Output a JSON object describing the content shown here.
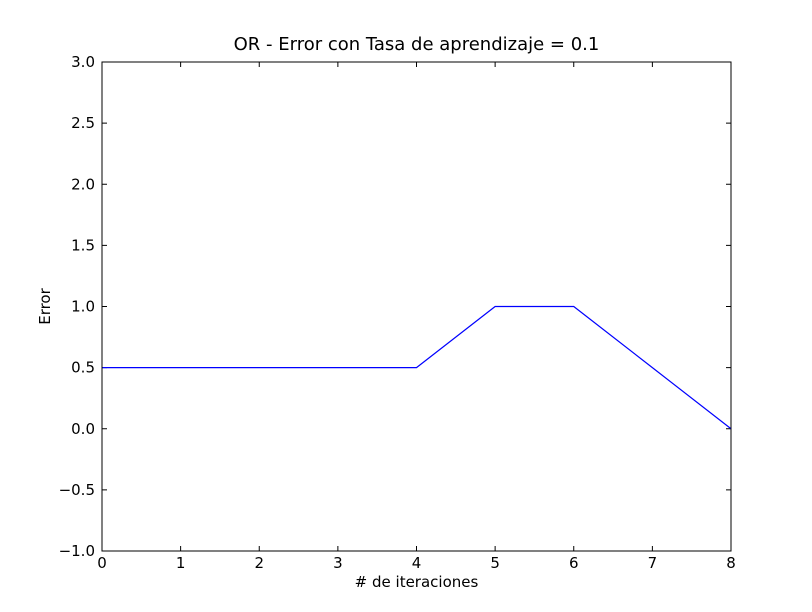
{
  "chart_data": {
    "type": "line",
    "title": "OR - Error con Tasa de aprendizaje = 0.1",
    "xlabel": "# de iteraciones",
    "ylabel": "Error",
    "xlim": [
      0,
      8
    ],
    "ylim": [
      -1.0,
      3.0
    ],
    "xticks": [
      "0",
      "1",
      "2",
      "3",
      "4",
      "5",
      "6",
      "7",
      "8"
    ],
    "yticks": [
      "−1.0",
      "−0.5",
      "0.0",
      "0.5",
      "1.0",
      "1.5",
      "2.0",
      "2.5",
      "3.0"
    ],
    "ytick_values": [
      -1.0,
      -0.5,
      0.0,
      0.5,
      1.0,
      1.5,
      2.0,
      2.5,
      3.0
    ],
    "xtick_values": [
      0,
      1,
      2,
      3,
      4,
      5,
      6,
      7,
      8
    ],
    "grid": false,
    "series": [
      {
        "color": "#0000ff",
        "x": [
          0,
          1,
          2,
          3,
          4,
          5,
          6,
          7,
          8
        ],
        "y": [
          0.5,
          0.5,
          0.5,
          0.5,
          0.5,
          1.0,
          1.0,
          0.5,
          0.0
        ]
      }
    ]
  }
}
